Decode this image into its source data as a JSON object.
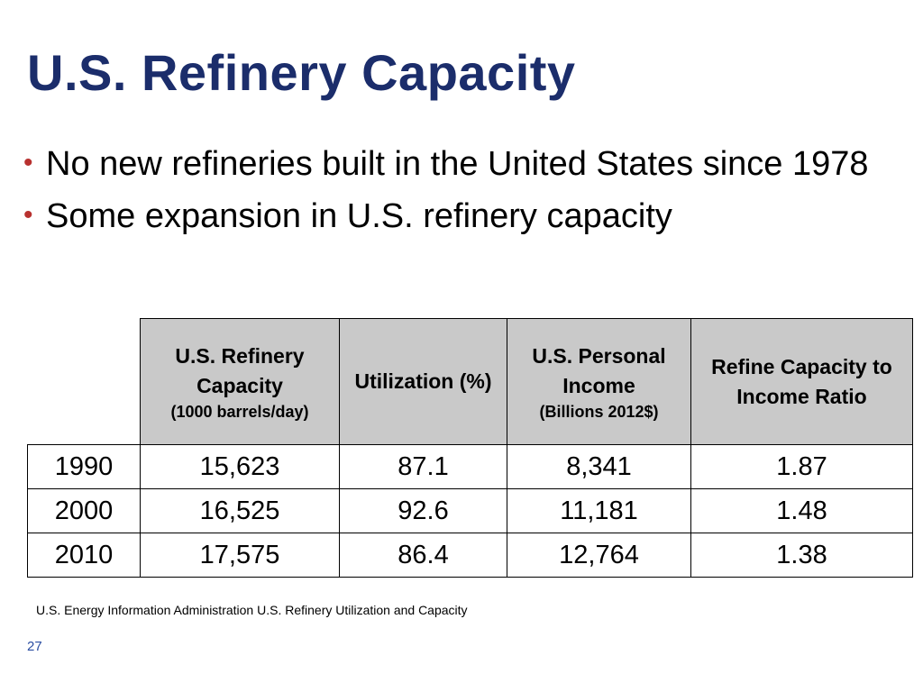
{
  "slide": {
    "title": "U.S. Refinery Capacity",
    "page_number": "27",
    "source_note": "U.S. Energy Information Administration U.S. Refinery Utilization and Capacity"
  },
  "bullets": [
    "No new refineries built in the United States since 1978",
    "Some expansion in U.S. refinery capacity"
  ],
  "table": {
    "headers": [
      {
        "main": "U.S. Refinery Capacity",
        "sub": "(1000 barrels/day)"
      },
      {
        "main": "Utilization (%)",
        "sub": ""
      },
      {
        "main": "U.S. Personal Income",
        "sub": "(Billions 2012$)"
      },
      {
        "main": "Refine Capacity to Income Ratio",
        "sub": ""
      }
    ],
    "rows": [
      {
        "year": "1990",
        "capacity": "15,623",
        "utilization": "87.1",
        "income": "8,341",
        "ratio": "1.87"
      },
      {
        "year": "2000",
        "capacity": "16,525",
        "utilization": "92.6",
        "income": "11,181",
        "ratio": "1.48"
      },
      {
        "year": "2010",
        "capacity": "17,575",
        "utilization": "86.4",
        "income": "12,764",
        "ratio": "1.38"
      }
    ]
  },
  "colors": {
    "title": "#1b2d6b",
    "bullet_marker": "#b8312f",
    "header_fill": "#c9c9c9",
    "page_number": "#2b4ea2"
  }
}
